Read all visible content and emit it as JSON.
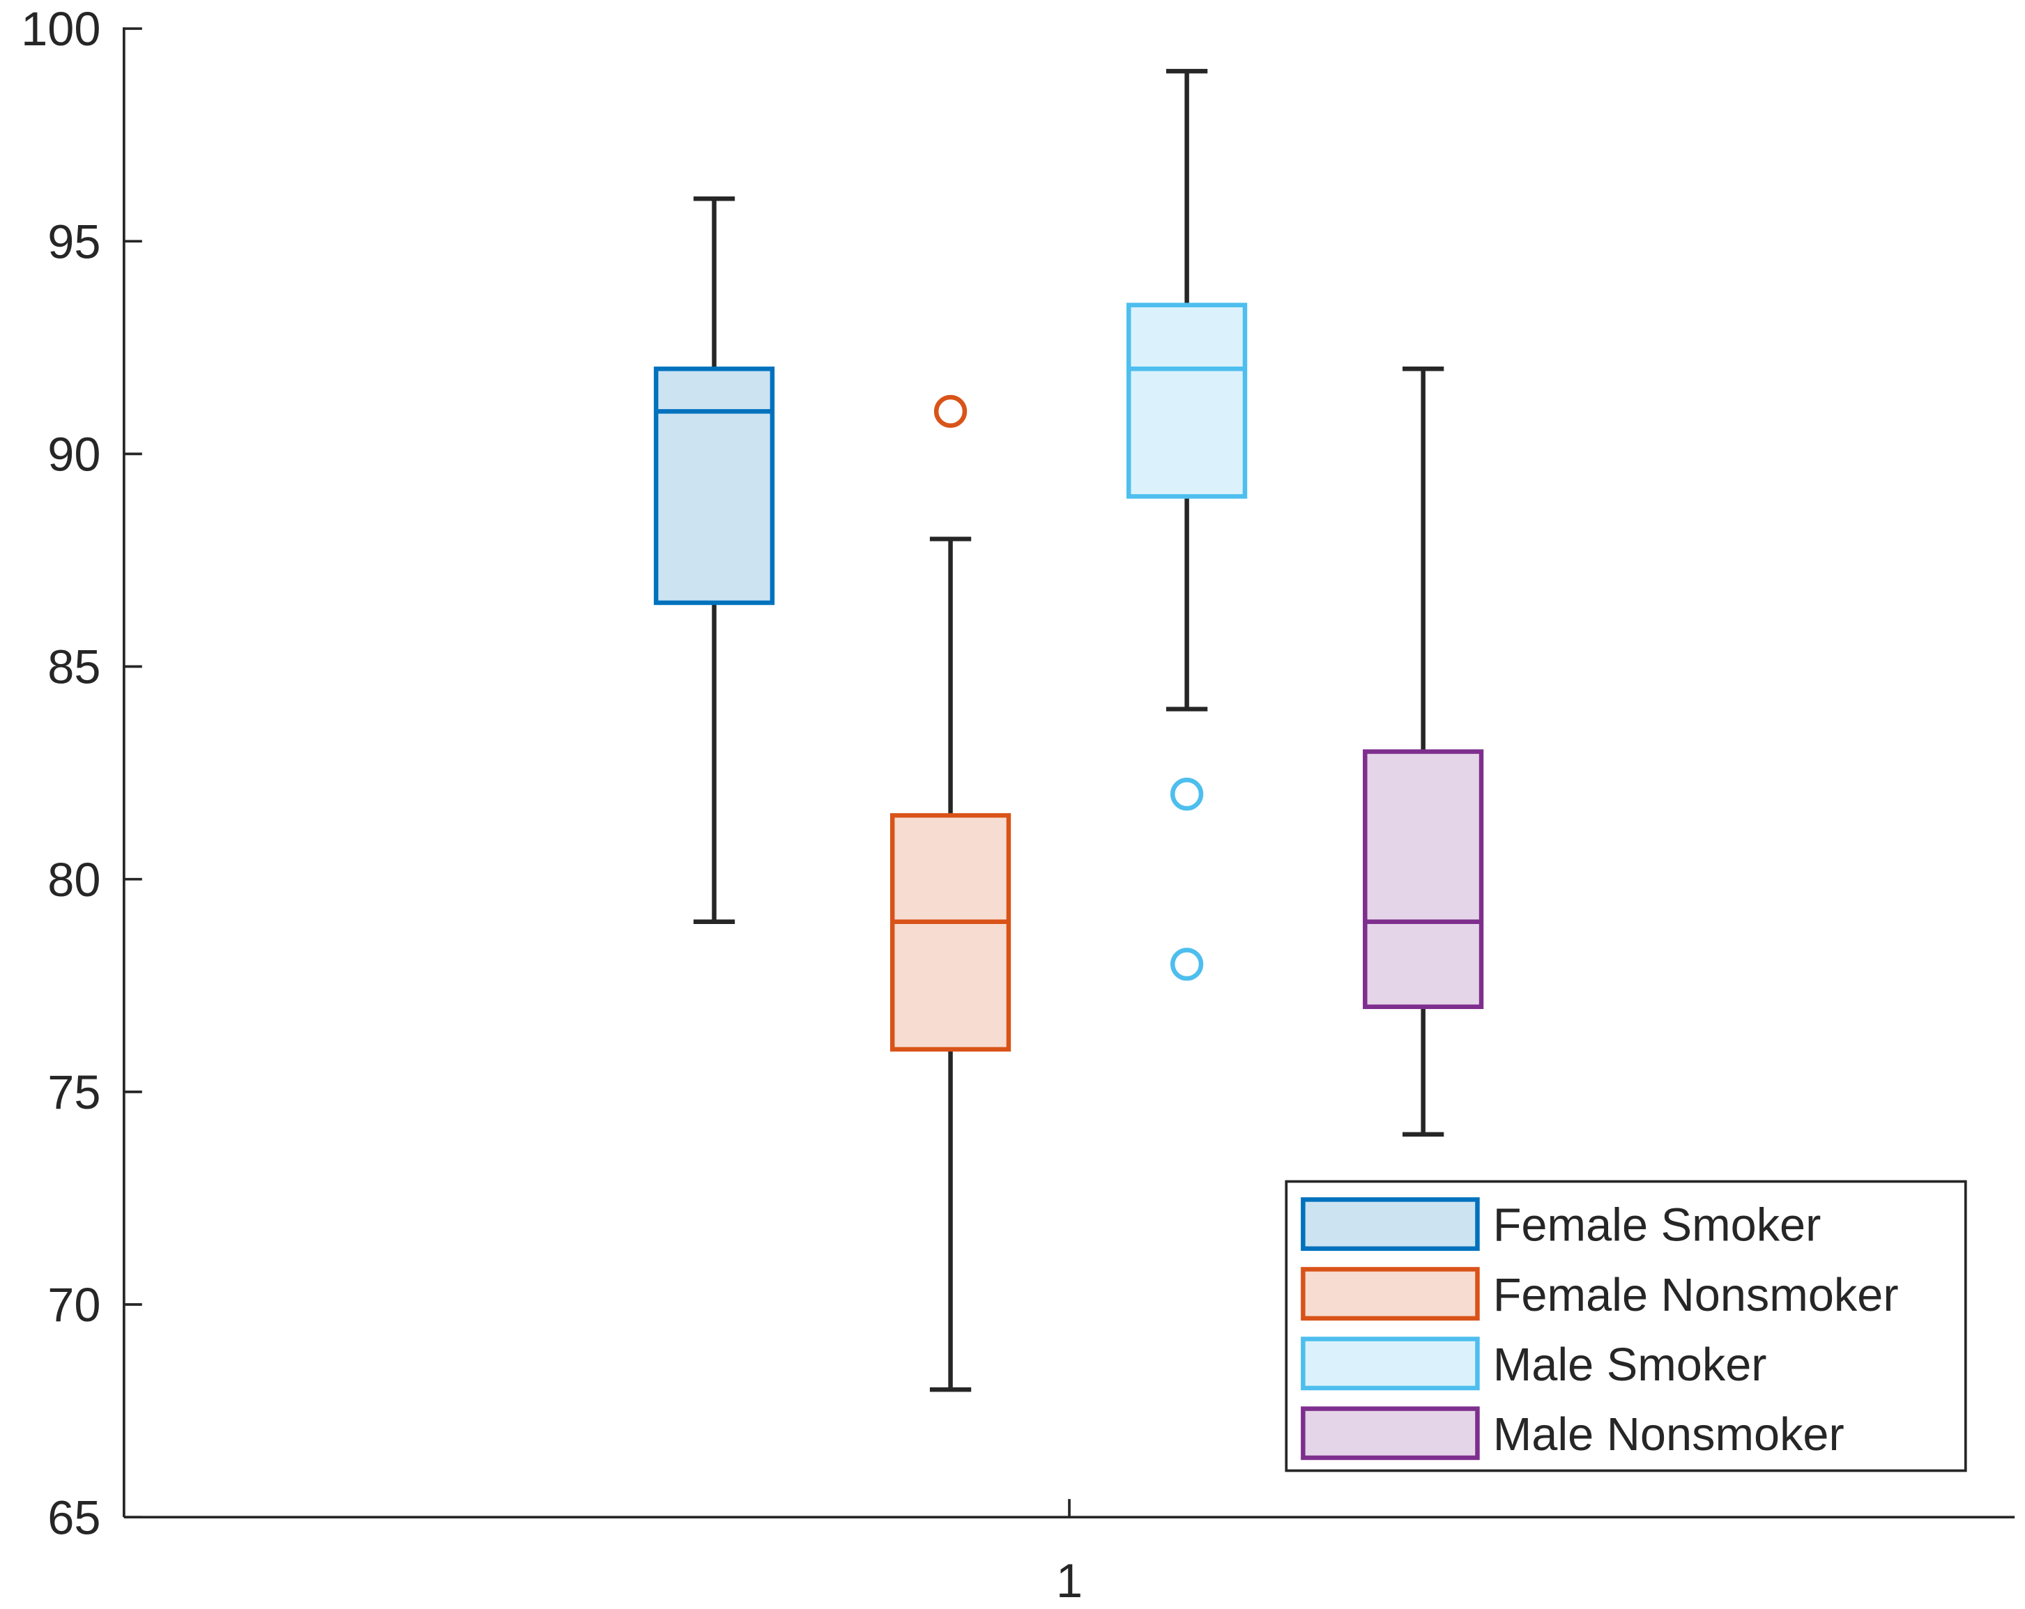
{
  "chart_data": {
    "type": "box",
    "title": "",
    "xlabel": "",
    "ylabel": "",
    "ylim": [
      65,
      100
    ],
    "yticks": [
      65,
      70,
      75,
      80,
      85,
      90,
      95,
      100
    ],
    "xticks": [
      "1"
    ],
    "grid": false,
    "legend_position": "bottom-right",
    "series": [
      {
        "name": "Female Smoker",
        "color": "#0072BD",
        "fill": "#CCE3F2",
        "whisker_low": 79,
        "q1": 86.5,
        "median": 91,
        "q3": 92,
        "whisker_high": 96,
        "outliers": []
      },
      {
        "name": "Female Nonsmoker",
        "color": "#D95319",
        "fill": "#F7DDD1",
        "whisker_low": 68,
        "q1": 76,
        "median": 79,
        "q3": 81.5,
        "whisker_high": 88,
        "outliers": [
          91
        ]
      },
      {
        "name": "Male Smoker",
        "color": "#4DBEEE",
        "fill": "#DBF2FC",
        "whisker_low": 84,
        "q1": 89,
        "median": 92,
        "q3": 93.5,
        "whisker_high": 99,
        "outliers": [
          82,
          78
        ]
      },
      {
        "name": "Male Nonsmoker",
        "color": "#7E2F8E",
        "fill": "#E5D5E8",
        "whisker_low": 74,
        "q1": 77,
        "median": 79,
        "q3": 83,
        "whisker_high": 92,
        "outliers": []
      }
    ]
  }
}
